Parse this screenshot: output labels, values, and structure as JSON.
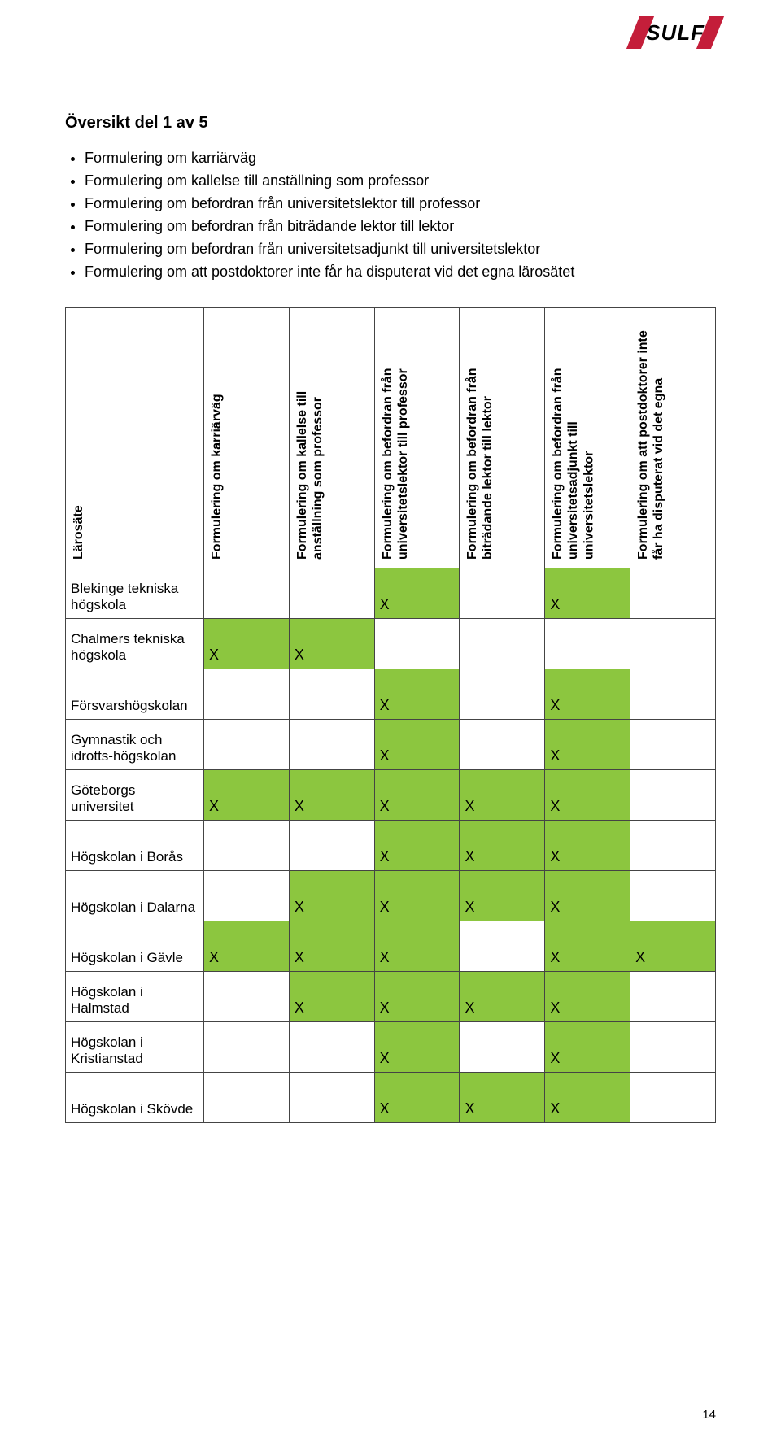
{
  "logo_text": "SULF",
  "title": "Översikt del 1 av 5",
  "bullets": [
    "Formulering om karriärväg",
    "Formulering om kallelse till anställning som professor",
    "Formulering om befordran från universitetslektor till professor",
    "Formulering om befordran från biträdande lektor till lektor",
    "Formulering om befordran från universitetsadjunkt till universitetslektor",
    "Formulering om att postdoktorer inte får ha disputerat vid det egna lärosätet"
  ],
  "columns": [
    "Lärosäte",
    "Formulering om karriärväg",
    "Formulering om kallelse till anställning som professor",
    "Formulering om befordran från universitetslektor till professor",
    "Formulering om befordran från biträdande lektor till lektor",
    "Formulering om befordran från universitetsadjunkt till universitetslektor",
    "Formulering om att postdoktorer inte får ha disputerat vid det egna"
  ],
  "mark_char": "X",
  "colors": {
    "mark_bg": "#8cc63f",
    "border": "#444444",
    "logo_red": "#c41e3a",
    "text": "#000000",
    "background": "#ffffff"
  },
  "rows": [
    {
      "label": "Blekinge tekniska högskola",
      "cells": [
        0,
        0,
        1,
        0,
        1,
        0
      ]
    },
    {
      "label": "Chalmers tekniska högskola",
      "cells": [
        1,
        1,
        0,
        0,
        0,
        0
      ]
    },
    {
      "label": "Försvarshögskolan",
      "cells": [
        0,
        0,
        1,
        0,
        1,
        0
      ]
    },
    {
      "label": "Gymnastik och idrotts-högskolan",
      "cells": [
        0,
        0,
        1,
        0,
        1,
        0
      ]
    },
    {
      "label": "Göteborgs universitet",
      "cells": [
        1,
        1,
        1,
        1,
        1,
        0
      ]
    },
    {
      "label": "Högskolan i Borås",
      "cells": [
        0,
        0,
        1,
        1,
        1,
        0
      ]
    },
    {
      "label": "Högskolan i Dalarna",
      "cells": [
        0,
        1,
        1,
        1,
        1,
        0
      ]
    },
    {
      "label": "Högskolan i Gävle",
      "cells": [
        1,
        1,
        1,
        0,
        1,
        1
      ]
    },
    {
      "label": "Högskolan i Halmstad",
      "cells": [
        0,
        1,
        1,
        1,
        1,
        0
      ]
    },
    {
      "label": "Högskolan i Kristianstad",
      "cells": [
        0,
        0,
        1,
        0,
        1,
        0
      ]
    },
    {
      "label": "Högskolan i Skövde",
      "cells": [
        0,
        0,
        1,
        1,
        1,
        0
      ]
    }
  ],
  "page_number": "14"
}
